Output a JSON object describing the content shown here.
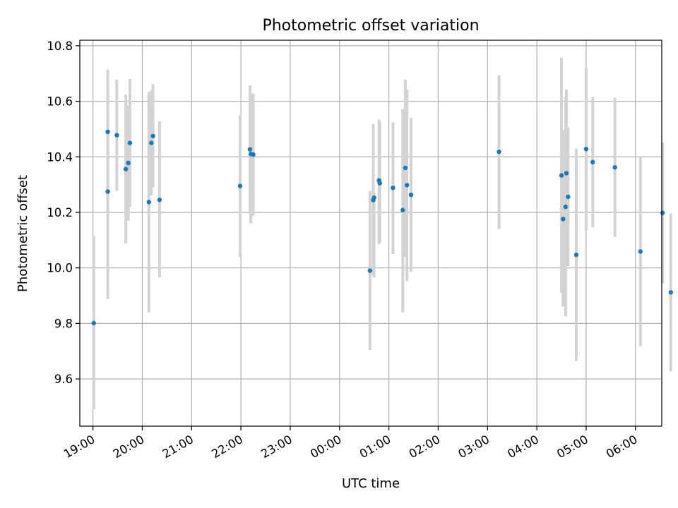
{
  "chart_data": {
    "type": "scatter",
    "title": "Photometric offset variation",
    "xlabel": "UTC time",
    "ylabel": "Photometric offset",
    "x_tick_labels": [
      "19:00",
      "20:00",
      "21:00",
      "22:00",
      "23:00",
      "00:00",
      "01:00",
      "02:00",
      "03:00",
      "04:00",
      "05:00",
      "06:00"
    ],
    "y_ticks": [
      9.6,
      9.8,
      10.0,
      10.2,
      10.4,
      10.6,
      10.8
    ],
    "xlim": [
      "18:44",
      "06:32"
    ],
    "ylim": [
      9.43,
      10.82
    ],
    "grid": true,
    "colors": {
      "point": "#1f77b4",
      "errorbar": "#d3d3d3"
    },
    "series": [
      {
        "errorbars": true,
        "points": [
          {
            "x": "19:01",
            "y": 9.801,
            "lo": 9.49,
            "hi": 10.115
          },
          {
            "x": "19:18",
            "y": 10.275,
            "lo": 9.888,
            "hi": 10.66
          },
          {
            "x": "19:18",
            "y": 10.49,
            "lo": 10.265,
            "hi": 10.715
          },
          {
            "x": "19:29",
            "y": 10.478,
            "lo": 10.278,
            "hi": 10.678
          },
          {
            "x": "19:40",
            "y": 10.356,
            "lo": 10.088,
            "hi": 10.624
          },
          {
            "x": "19:43",
            "y": 10.378,
            "lo": 10.17,
            "hi": 10.586
          },
          {
            "x": "19:45",
            "y": 10.45,
            "lo": 10.22,
            "hi": 10.68
          },
          {
            "x": "20:08",
            "y": 10.237,
            "lo": 9.84,
            "hi": 10.634
          },
          {
            "x": "20:11",
            "y": 10.45,
            "lo": 10.26,
            "hi": 10.64
          },
          {
            "x": "20:13",
            "y": 10.475,
            "lo": 10.29,
            "hi": 10.662
          },
          {
            "x": "20:21",
            "y": 10.245,
            "lo": 9.965,
            "hi": 10.528
          },
          {
            "x": "21:59",
            "y": 10.295,
            "lo": 10.04,
            "hi": 10.55
          },
          {
            "x": "22:11",
            "y": 10.427,
            "lo": 10.195,
            "hi": 10.657
          },
          {
            "x": "22:12",
            "y": 10.41,
            "lo": 10.16,
            "hi": 10.63
          },
          {
            "x": "22:15",
            "y": 10.408,
            "lo": 10.188,
            "hi": 10.628
          },
          {
            "x": "00:37",
            "y": 9.99,
            "lo": 9.704,
            "hi": 10.276
          },
          {
            "x": "00:41",
            "y": 10.244,
            "lo": 9.97,
            "hi": 10.518
          },
          {
            "x": "00:42",
            "y": 10.253,
            "lo": 9.965,
            "hi": 10.271
          },
          {
            "x": "00:48",
            "y": 10.315,
            "lo": 10.085,
            "hi": 10.534
          },
          {
            "x": "00:49",
            "y": 10.305,
            "lo": 10.09,
            "hi": 10.525
          },
          {
            "x": "01:05",
            "y": 10.288,
            "lo": 10.05,
            "hi": 10.524
          },
          {
            "x": "01:17",
            "y": 10.208,
            "lo": 9.84,
            "hi": 10.572
          },
          {
            "x": "01:20",
            "y": 10.36,
            "lo": 10.04,
            "hi": 10.678
          },
          {
            "x": "01:22",
            "y": 10.298,
            "lo": 9.952,
            "hi": 10.642
          },
          {
            "x": "01:27",
            "y": 10.263,
            "lo": 9.986,
            "hi": 10.54
          },
          {
            "x": "03:14",
            "y": 10.418,
            "lo": 10.14,
            "hi": 10.694
          },
          {
            "x": "04:30",
            "y": 10.333,
            "lo": 9.91,
            "hi": 10.756
          },
          {
            "x": "04:32",
            "y": 10.176,
            "lo": 9.86,
            "hi": 10.497
          },
          {
            "x": "04:35",
            "y": 10.22,
            "lo": 9.825,
            "hi": 10.615
          },
          {
            "x": "04:36",
            "y": 10.341,
            "lo": 10.041,
            "hi": 10.643
          },
          {
            "x": "04:38",
            "y": 10.256,
            "lo": 10.006,
            "hi": 10.506
          },
          {
            "x": "04:48",
            "y": 10.047,
            "lo": 9.665,
            "hi": 10.43
          },
          {
            "x": "05:00",
            "y": 10.428,
            "lo": 10.135,
            "hi": 10.721
          },
          {
            "x": "05:08",
            "y": 10.381,
            "lo": 10.146,
            "hi": 10.616
          },
          {
            "x": "05:35",
            "y": 10.362,
            "lo": 10.111,
            "hi": 10.613
          },
          {
            "x": "06:06",
            "y": 10.059,
            "lo": 9.718,
            "hi": 10.4
          },
          {
            "x": "06:33",
            "y": 10.198,
            "lo": 9.944,
            "hi": 10.452
          },
          {
            "x": "06:43",
            "y": 9.912,
            "lo": 9.628,
            "hi": 10.196
          }
        ]
      }
    ]
  }
}
